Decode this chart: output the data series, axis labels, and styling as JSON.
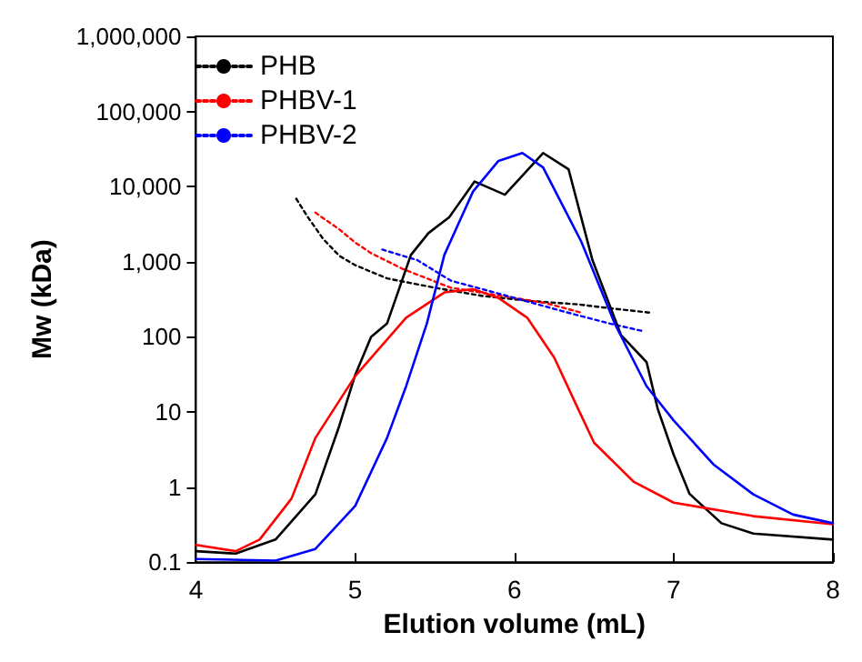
{
  "chart_data": {
    "type": "line",
    "xlabel": "Elution volume (mL)",
    "ylabel": "Mw (kDa)",
    "log": "y",
    "xlim": [
      4,
      8
    ],
    "xticks": [
      4,
      5,
      6,
      7,
      8
    ],
    "ylim": [
      0.1,
      1000000
    ],
    "yticks": [
      0.1,
      1,
      10,
      100,
      {
        "value": 1000,
        "label": "1,000"
      },
      {
        "value": 10000,
        "label": "10,000"
      },
      {
        "value": 100000,
        "label": "100,000"
      },
      {
        "value": 1000000,
        "label": "1,000,000"
      }
    ],
    "grid": false,
    "legend": "top left",
    "marker": "none",
    "series": [
      {
        "name": "PHB",
        "color": "#000000",
        "line_style": "dotted",
        "x": [
          4.63,
          4.7,
          4.8,
          4.9,
          5.0,
          5.2,
          5.5,
          5.8,
          6.1,
          6.4,
          6.6,
          6.85
        ],
        "values": [
          6900,
          4000,
          2000,
          1200,
          900,
          600,
          450,
          350,
          300,
          270,
          240,
          210
        ]
      },
      {
        "name": "PHBV-1",
        "color": "#ff0000",
        "line_style": "dotted",
        "x": [
          4.75,
          4.9,
          5.0,
          5.1,
          5.3,
          5.6,
          6.0,
          6.2,
          6.42
        ],
        "values": [
          4500,
          2700,
          1800,
          1300,
          800,
          450,
          330,
          280,
          210
        ]
      },
      {
        "name": "PHBV-2",
        "color": "#0000ff",
        "line_style": "dotted",
        "x": [
          5.17,
          5.39,
          5.6,
          6.0,
          6.3,
          6.6,
          6.8
        ],
        "values": [
          1450,
          1050,
          560,
          330,
          220,
          150,
          120
        ]
      },
      {
        "color": "#000000",
        "line_style": "solid",
        "x": [
          4.0,
          4.25,
          4.5,
          4.75,
          4.9,
          5.0,
          5.1,
          5.2,
          5.35,
          5.46,
          5.59,
          5.75,
          5.94,
          6.18,
          6.34,
          6.49,
          6.67,
          6.83,
          6.9,
          7.0,
          7.1,
          7.3,
          7.5,
          8.0
        ],
        "values": [
          0.14,
          0.13,
          0.2,
          0.8,
          6.5,
          31,
          100,
          150,
          1230,
          2400,
          3900,
          11700,
          7800,
          28000,
          17000,
          1050,
          105,
          46,
          11,
          2.7,
          0.81,
          0.33,
          0.24,
          0.2
        ]
      },
      {
        "color": "#ff0000",
        "line_style": "solid",
        "x": [
          4.0,
          4.25,
          4.4,
          4.6,
          4.75,
          5.0,
          5.32,
          5.56,
          5.74,
          5.9,
          6.08,
          6.25,
          6.4,
          6.5,
          6.75,
          7.0,
          7.5,
          8.0
        ],
        "values": [
          0.17,
          0.14,
          0.2,
          0.7,
          4.5,
          30,
          180,
          390,
          430,
          330,
          180,
          53,
          11,
          3.9,
          1.17,
          0.62,
          0.41,
          0.32
        ]
      },
      {
        "color": "#0000ff",
        "line_style": "solid",
        "x": [
          4.0,
          4.5,
          4.75,
          5.0,
          5.2,
          5.32,
          5.45,
          5.56,
          5.74,
          5.9,
          6.05,
          6.18,
          6.42,
          6.63,
          6.83,
          7.0,
          7.25,
          7.5,
          7.75,
          8.0
        ],
        "values": [
          0.11,
          0.105,
          0.15,
          0.56,
          4.5,
          22,
          150,
          1230,
          8600,
          22000,
          28000,
          18000,
          1850,
          150,
          22,
          7.7,
          2,
          0.8,
          0.43,
          0.33
        ]
      }
    ]
  }
}
